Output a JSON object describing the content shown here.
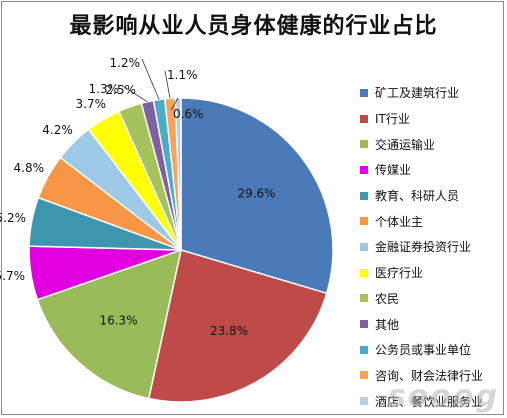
{
  "chart_data": {
    "type": "pie",
    "title": "最影响从业人员身体健康的行业占比",
    "legend_position": "right",
    "slices": [
      {
        "label": "矿工及建筑行业",
        "value": 29.6,
        "display": "29.6%",
        "color": "#4a7ab8"
      },
      {
        "label": "IT行业",
        "value": 23.8,
        "display": "23.8%",
        "color": "#be4b48"
      },
      {
        "label": "交通运输业",
        "value": 16.3,
        "display": "16.3%",
        "color": "#9abb59"
      },
      {
        "label": "传媒业",
        "value": 5.7,
        "display": "5.7%",
        "color": "#e000e0"
      },
      {
        "label": "教育、科研人员",
        "value": 5.2,
        "display": "5.2%",
        "color": "#3d96ae"
      },
      {
        "label": "个体业主",
        "value": 4.8,
        "display": "4.8%",
        "color": "#f79646"
      },
      {
        "label": "金融证券投资行业",
        "value": 4.2,
        "display": "4.2%",
        "color": "#9dc9e6"
      },
      {
        "label": "医疗行业",
        "value": 3.7,
        "display": "3.7%",
        "color": "#ffff00"
      },
      {
        "label": "农民",
        "value": 2.5,
        "display": "2.5%",
        "color": "#a5c25c"
      },
      {
        "label": "其他",
        "value": 1.3,
        "display": "1.3%",
        "color": "#7e61a0"
      },
      {
        "label": "公务员或事业单位",
        "value": 1.2,
        "display": "1.2%",
        "color": "#4bacc6"
      },
      {
        "label": "咨询、财会法律行业",
        "value": 1.1,
        "display": "1.1%",
        "color": "#f7a35c"
      },
      {
        "label": "酒店、餐饮业服务业",
        "value": 0.6,
        "display": "0.6%",
        "color": "#b9cde5"
      }
    ]
  },
  "watermark": "sooog"
}
